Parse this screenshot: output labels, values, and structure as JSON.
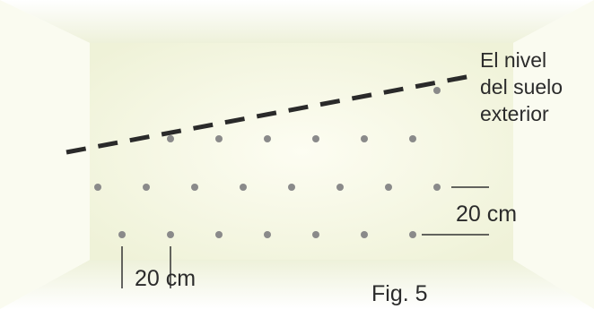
{
  "diagram": {
    "ground_level_label": [
      "El nivel",
      "del suelo",
      "exterior"
    ],
    "vertical_spacing_label": "20 cm",
    "horizontal_spacing_label": "20 cm",
    "figure_label": "Fig. 5"
  },
  "colors": {
    "wall_center": "#fbfbeb",
    "wall_edge": "#eef0d6",
    "floor_ceiling": "#f2f4e0",
    "dots": "#8a8a8a",
    "dashed_line": "#2a2a2a",
    "dimension_lines": "#333333",
    "text": "#2b2b2b"
  },
  "dot_rows": [
    {
      "row": "top",
      "count": 7
    },
    {
      "row": "middle",
      "count": 8
    },
    {
      "row": "bottom",
      "count": 7
    }
  ]
}
